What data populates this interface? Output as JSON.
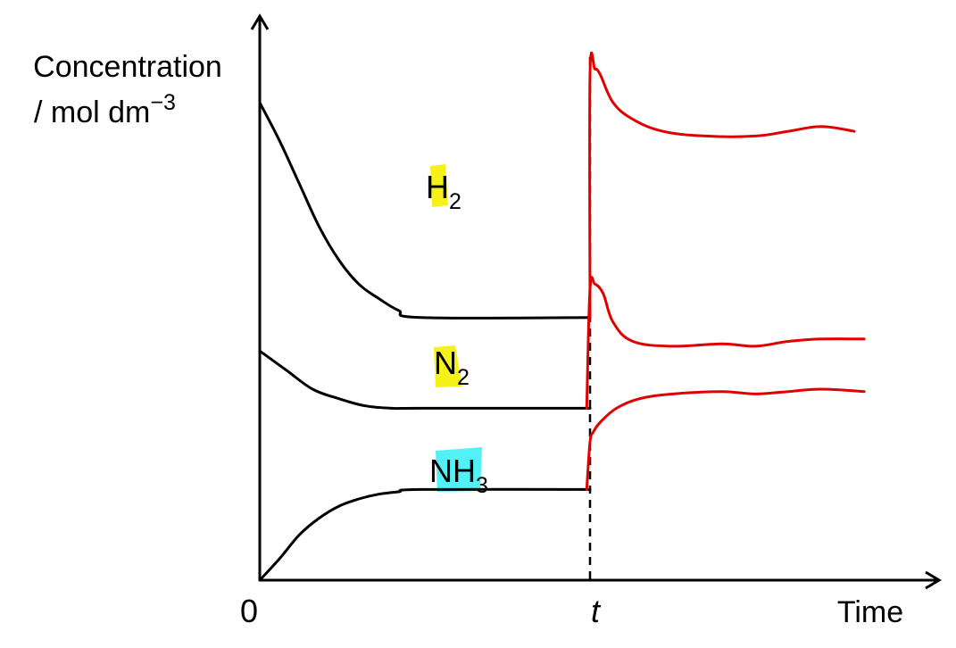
{
  "chart_data": {
    "type": "line",
    "ylabel": "Concentration",
    "ylabel_units": "/ mol dm",
    "ylabel_units_exp": "−3",
    "xlabel": "Time",
    "x_tick_labels": [
      "0",
      "t"
    ],
    "x_marker": {
      "at": 1.0,
      "label": "t",
      "style": "dashed"
    },
    "xlim": [
      0,
      1.85
    ],
    "ylim": [
      0,
      1.0
    ],
    "colors": {
      "before_t": "#000000",
      "after_t": "#e00000",
      "highlight_yellow": "#f5f000",
      "highlight_cyan": "#3ff0f5"
    },
    "series": [
      {
        "label_main": "H",
        "label_sub": "2",
        "highlight": "yellow",
        "before": {
          "x": [
            0,
            0.06,
            0.12,
            0.18,
            0.24,
            0.3,
            0.36,
            0.42,
            0.49,
            1.0
          ],
          "y": [
            1.0,
            0.92,
            0.83,
            0.74,
            0.67,
            0.62,
            0.59,
            0.565,
            0.55,
            0.55
          ]
        },
        "after": {
          "x": [
            1.0,
            1.0,
            1.015,
            1.03,
            1.07,
            1.13,
            1.22,
            1.35,
            1.5,
            1.6,
            1.7,
            1.8
          ],
          "y": [
            0.55,
            1.06,
            1.07,
            1.06,
            1.0,
            0.965,
            0.94,
            0.93,
            0.93,
            0.94,
            0.95,
            0.94
          ]
        }
      },
      {
        "label_main": "N",
        "label_sub": "2",
        "highlight": "yellow",
        "before": {
          "x": [
            0,
            0.08,
            0.16,
            0.24,
            0.32,
            0.4,
            0.49,
            1.0
          ],
          "y": [
            0.48,
            0.44,
            0.4,
            0.38,
            0.365,
            0.36,
            0.36,
            0.36
          ]
        },
        "after": {
          "x": [
            0.99,
            1.0,
            1.015,
            1.04,
            1.07,
            1.13,
            1.25,
            1.4,
            1.5,
            1.6,
            1.7,
            1.83
          ],
          "y": [
            0.36,
            0.61,
            0.62,
            0.6,
            0.54,
            0.5,
            0.49,
            0.495,
            0.49,
            0.5,
            0.505,
            0.505
          ]
        }
      },
      {
        "label_main": "NH",
        "label_sub": "3",
        "highlight": "cyan",
        "before": {
          "x": [
            0,
            0.06,
            0.12,
            0.18,
            0.24,
            0.3,
            0.36,
            0.42,
            0.49,
            1.0
          ],
          "y": [
            0.0,
            0.045,
            0.095,
            0.13,
            0.155,
            0.17,
            0.18,
            0.185,
            0.19,
            0.19
          ]
        },
        "after": {
          "x": [
            0.99,
            1.0,
            1.01,
            1.03,
            1.08,
            1.15,
            1.25,
            1.4,
            1.5,
            1.6,
            1.7,
            1.83
          ],
          "y": [
            0.19,
            0.29,
            0.31,
            0.33,
            0.36,
            0.38,
            0.39,
            0.395,
            0.39,
            0.395,
            0.4,
            0.395
          ]
        }
      }
    ]
  }
}
